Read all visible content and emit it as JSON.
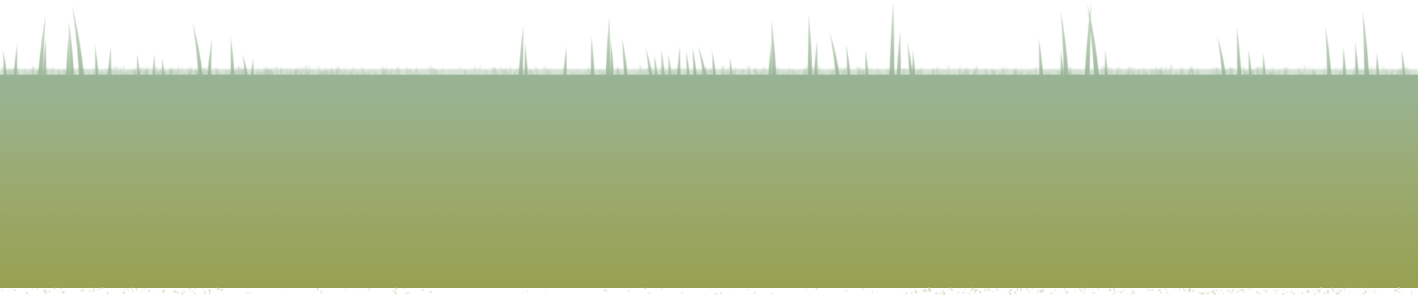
{
  "scene": {
    "description_colors": {
      "sky": "#ffffff",
      "grass_top": "#97b394",
      "grass_mid": "#9bab6f",
      "grass_bottom": "#98a252",
      "blade": "#9dbb98",
      "blade_highlight": "#b9cdb5",
      "fuzz": "#a7bea3",
      "bottom_fringe": "#d9e0c4"
    }
  }
}
